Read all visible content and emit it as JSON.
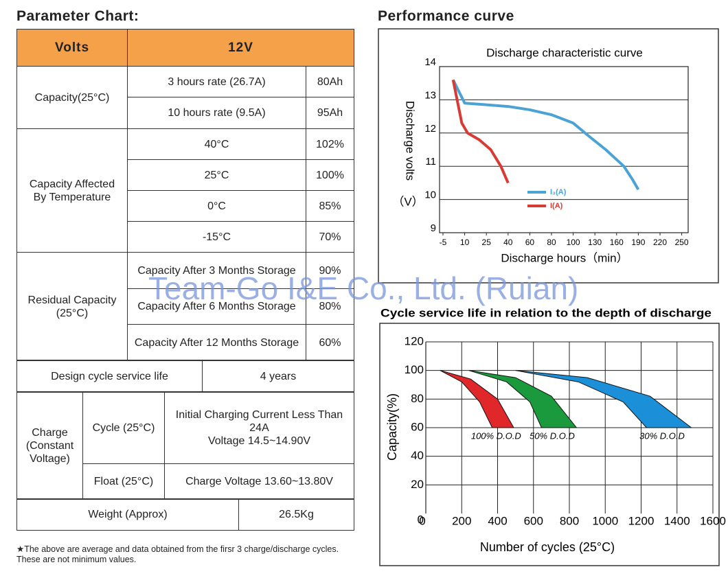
{
  "parameter_chart": {
    "title": "Parameter Chart:",
    "header": [
      "Volts",
      "12V"
    ],
    "capacity": {
      "label": "Capacity(25°C)",
      "rows": [
        [
          "3 hours rate (26.7A)",
          "80Ah"
        ],
        [
          "10 hours rate (9.5A)",
          "95Ah"
        ]
      ]
    },
    "temperature": {
      "label": "Capacity Affected By Temperature",
      "rows": [
        [
          "40°C",
          "102%"
        ],
        [
          "25°C",
          "100%"
        ],
        [
          "0°C",
          "85%"
        ],
        [
          "-15°C",
          "70%"
        ]
      ]
    },
    "storage": {
      "label": "Residual Capacity (25°C)",
      "rows": [
        [
          "Capacity After 3 Months Storage",
          "90%"
        ],
        [
          "Capacity After 6 Months Storage",
          "80%"
        ],
        [
          "Capacity After 12 Months Storage",
          "60%"
        ]
      ]
    },
    "cycle_life": [
      "Design cycle service life",
      "4 years"
    ],
    "charge": {
      "label": "Charge (Constant Voltage)",
      "cycle": [
        "Cycle (25°C)",
        "Initial Charging Current Less Than 24A",
        "Voltage 14.5~14.90V"
      ],
      "float": [
        "Float (25°C)",
        "Charge Voltage 13.60~13.80V"
      ]
    },
    "weight": [
      "Weight (Approx)",
      "26.5Kg"
    ],
    "note": "★The above are average and data obtained from the firsr 3 charge/discharge cycles. These are not minimum values."
  },
  "watermark": "Team-Go I&E Co., Ltd. (Ruian)",
  "chart_data": [
    {
      "type": "line",
      "heading": "Performance curve",
      "title": "Discharge characteristic curve",
      "xlabel": "Discharge hours（min）",
      "ylabel": "Discharge volts",
      "yunit": "（V）",
      "xlim": [
        -5,
        250
      ],
      "xticks": [
        -5,
        10,
        25,
        40,
        60,
        80,
        100,
        130,
        160,
        190,
        220,
        250
      ],
      "ylim": [
        9,
        14
      ],
      "yticks": [
        9,
        10,
        11,
        12,
        13,
        14
      ],
      "grid": "y",
      "legend": "center",
      "series": [
        {
          "name": "I₃(A)",
          "color": "#4aa3d4",
          "x": [
            2,
            10,
            25,
            40,
            60,
            80,
            100,
            122,
            145,
            170,
            182,
            190
          ],
          "values": [
            13.6,
            12.9,
            12.85,
            12.8,
            12.7,
            12.55,
            12.3,
            11.9,
            11.5,
            11.0,
            10.6,
            10.3
          ]
        },
        {
          "name": "I(A)",
          "color": "#d83a34",
          "x": [
            2,
            8,
            12,
            20,
            28,
            35,
            40
          ],
          "values": [
            13.6,
            12.3,
            12.0,
            11.8,
            11.5,
            11.0,
            10.5
          ]
        }
      ]
    },
    {
      "type": "area",
      "title": "Cycle service life in relation to the depth of discharge",
      "xlabel": "Number of cycles (25°C)",
      "ylabel": "Capacity(%)",
      "xlim": [
        0,
        1600
      ],
      "xticks": [
        0,
        200,
        400,
        600,
        800,
        1000,
        1200,
        1400,
        1600
      ],
      "ylim": [
        0,
        120
      ],
      "yticks": [
        0,
        20,
        40,
        60,
        80,
        100,
        120
      ],
      "grid": true,
      "series": [
        {
          "name": "100% D.O.D",
          "color": "#e0282b",
          "x": [
            80,
            250,
            400,
            490
          ],
          "values": [
            100,
            94,
            80,
            60
          ],
          "x2": [
            80,
            200,
            300,
            370
          ],
          "values2": [
            100,
            92,
            78,
            60
          ]
        },
        {
          "name": "50% D.O.D",
          "color": "#1a9a3c",
          "x": [
            240,
            500,
            700,
            840
          ],
          "values": [
            100,
            95,
            82,
            60
          ],
          "x2": [
            240,
            450,
            580,
            645
          ],
          "values2": [
            100,
            92,
            78,
            60
          ]
        },
        {
          "name": "30% D.O.D",
          "color": "#1b8fd8",
          "x": [
            500,
            900,
            1250,
            1480
          ],
          "values": [
            100,
            95,
            82,
            60
          ],
          "x2": [
            500,
            850,
            1100,
            1230
          ],
          "values2": [
            100,
            92,
            78,
            60
          ]
        }
      ]
    }
  ]
}
